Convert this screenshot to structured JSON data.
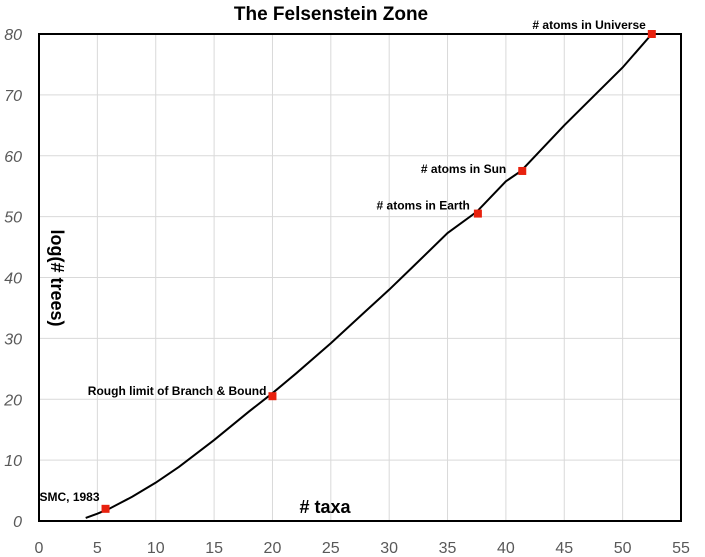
{
  "chart_data": {
    "type": "line",
    "title": "The Felsenstein Zone",
    "xlabel": "# taxa",
    "ylabel": "log(# trees)",
    "xlim": [
      0,
      55
    ],
    "ylim": [
      0,
      80
    ],
    "xticks": [
      0,
      5,
      10,
      15,
      20,
      25,
      30,
      35,
      40,
      45,
      50,
      55
    ],
    "yticks": [
      0,
      10,
      20,
      30,
      40,
      50,
      60,
      70,
      80
    ],
    "grid": true,
    "legend": null,
    "series": [
      {
        "name": "log(# trees)",
        "x": [
          4,
          5,
          6,
          7,
          8,
          10,
          12,
          15,
          18,
          20,
          22,
          25,
          28,
          30,
          32,
          35,
          37.5,
          40,
          41.3,
          45,
          50,
          52.5
        ],
        "y": [
          0.5,
          1.2,
          2.0,
          3.0,
          4.0,
          6.3,
          8.9,
          13.3,
          18.0,
          21.0,
          24.2,
          29.2,
          34.5,
          38.0,
          41.7,
          47.3,
          50.8,
          55.8,
          57.5,
          65.0,
          74.5,
          80.0
        ]
      }
    ],
    "annotations": [
      {
        "label": "SMC, 1983",
        "x": 5.7,
        "y": 2.0
      },
      {
        "label": "Rough limit of Branch & Bound",
        "x": 20.0,
        "y": 20.5
      },
      {
        "label": "# atoms in Earth",
        "x": 37.6,
        "y": 50.5
      },
      {
        "label": "# atoms in Sun",
        "x": 41.4,
        "y": 57.5
      },
      {
        "label": "# atoms in Universe",
        "x": 52.5,
        "y": 80.0
      }
    ],
    "colors": {
      "line": "#000000",
      "marker": "#e8210e",
      "grid": "#d9d9d9"
    }
  }
}
